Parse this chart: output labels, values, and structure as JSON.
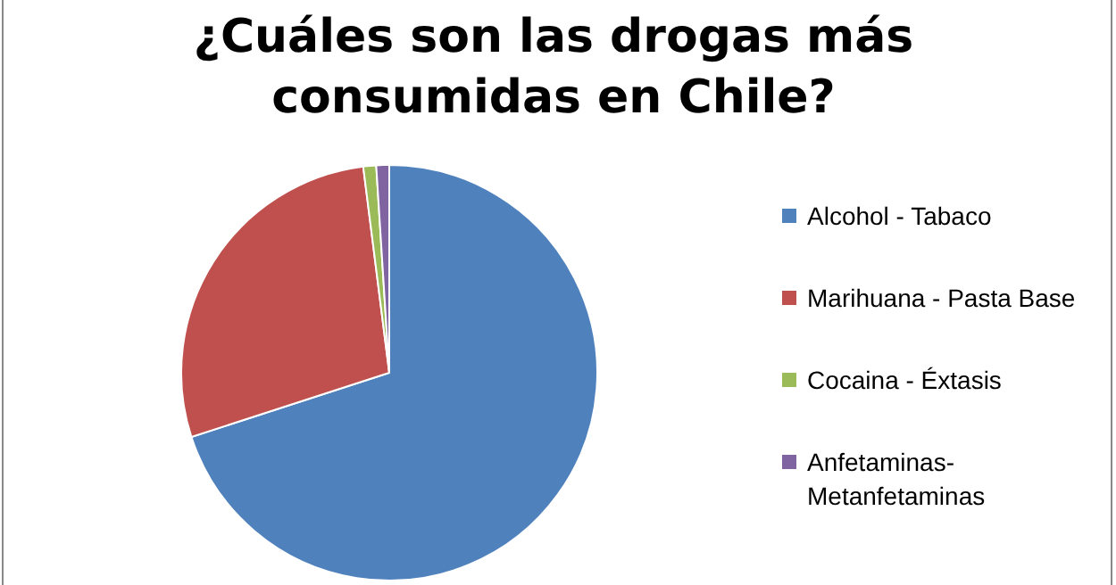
{
  "chart_data": {
    "type": "pie",
    "title": "¿Cuáles son las drogas más consumidas en Chile?",
    "categories": [
      "Alcohol - Tabaco",
      "Marihuana - Pasta Base",
      "Cocaina - Éxtasis",
      "Anfetaminas-Metanfetaminas"
    ],
    "values": [
      70,
      28,
      1,
      1
    ],
    "colors": [
      "#4f81bd",
      "#c0504d",
      "#9bbb59",
      "#8064a2"
    ],
    "legend": "right"
  }
}
